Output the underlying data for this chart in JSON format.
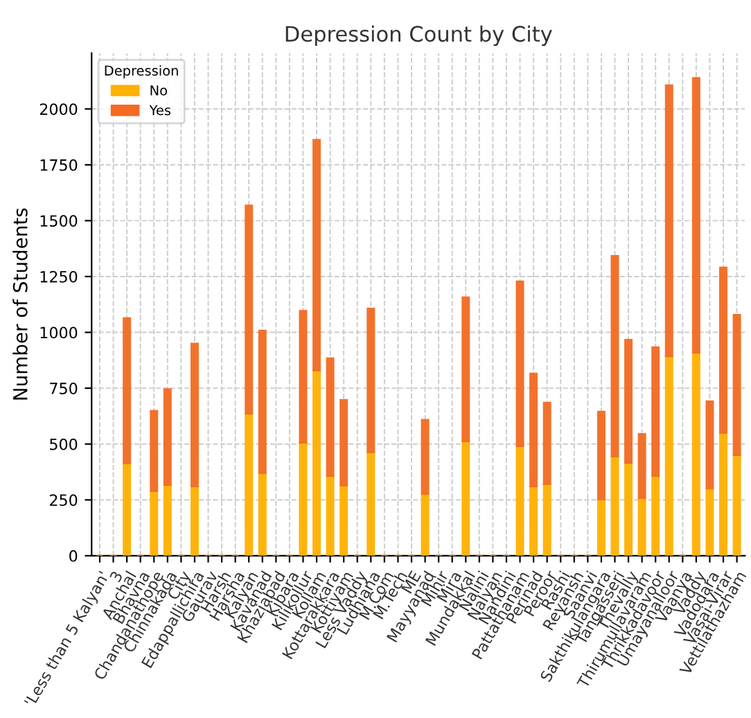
{
  "chart_data": {
    "type": "bar",
    "title": "Depression Count by City",
    "ylabel": "Number of Students",
    "legend_title": "Depression",
    "categories": [
      "'Less than 5 Kalyan'",
      "3",
      "Anchal",
      "Bhavna",
      "Chandanathope",
      "Chinnakada",
      "City",
      "Edappallichira",
      "Gaurav",
      "Harsh",
      "Harsha",
      "Kalyan",
      "Kavanad",
      "Khaziabad",
      "Kibara",
      "Kilikollur",
      "Kollam",
      "Kottarakkara",
      "Kottiyam",
      "Less Vaddy",
      "Ludhiana",
      "M.Com",
      "M.Tech",
      "ME",
      "Mayyanad",
      "Mihir",
      "Mira",
      "Mundakkal",
      "Nalini",
      "Nalyan",
      "Nandini",
      "Pattathanam",
      "Perinad",
      "Peroor",
      "Rashi",
      "Reyansh",
      "Saanvi",
      "Sakthikulangara",
      "Tangasseri",
      "Thevally",
      "Thirumullavaram",
      "Thrikkadavoor",
      "Umayanalloor",
      "Vaanya",
      "Vaddy",
      "Vadodara",
      "Vasai-Virar",
      "Vettilathazham"
    ],
    "stacked": true,
    "series": [
      {
        "name": "No",
        "color": "#ffb000",
        "values": [
          0,
          0,
          413,
          0,
          289,
          316,
          0,
          310,
          0,
          0,
          0,
          636,
          370,
          0,
          0,
          506,
          829,
          357,
          314,
          0,
          463,
          0,
          0,
          0,
          277,
          0,
          0,
          512,
          0,
          0,
          0,
          490,
          310,
          320,
          0,
          0,
          0,
          252,
          444,
          415,
          258,
          357,
          893,
          0,
          909,
          302,
          550,
          450
        ]
      },
      {
        "name": "Yes",
        "color": "#f26b21",
        "values": [
          0,
          0,
          651,
          0,
          360,
          430,
          0,
          640,
          0,
          0,
          0,
          932,
          638,
          0,
          0,
          591,
          1033,
          527,
          384,
          0,
          644,
          0,
          0,
          0,
          332,
          0,
          0,
          645,
          0,
          0,
          0,
          739,
          506,
          366,
          0,
          0,
          0,
          393,
          899,
          552,
          287,
          577,
          1214,
          0,
          1230,
          390,
          741,
          629
        ]
      }
    ],
    "ylim": [
      0,
      2250
    ],
    "yticks": [
      0,
      250,
      500,
      750,
      1000,
      1250,
      1500,
      1750,
      2000
    ],
    "grid": true,
    "legend": "top left"
  }
}
